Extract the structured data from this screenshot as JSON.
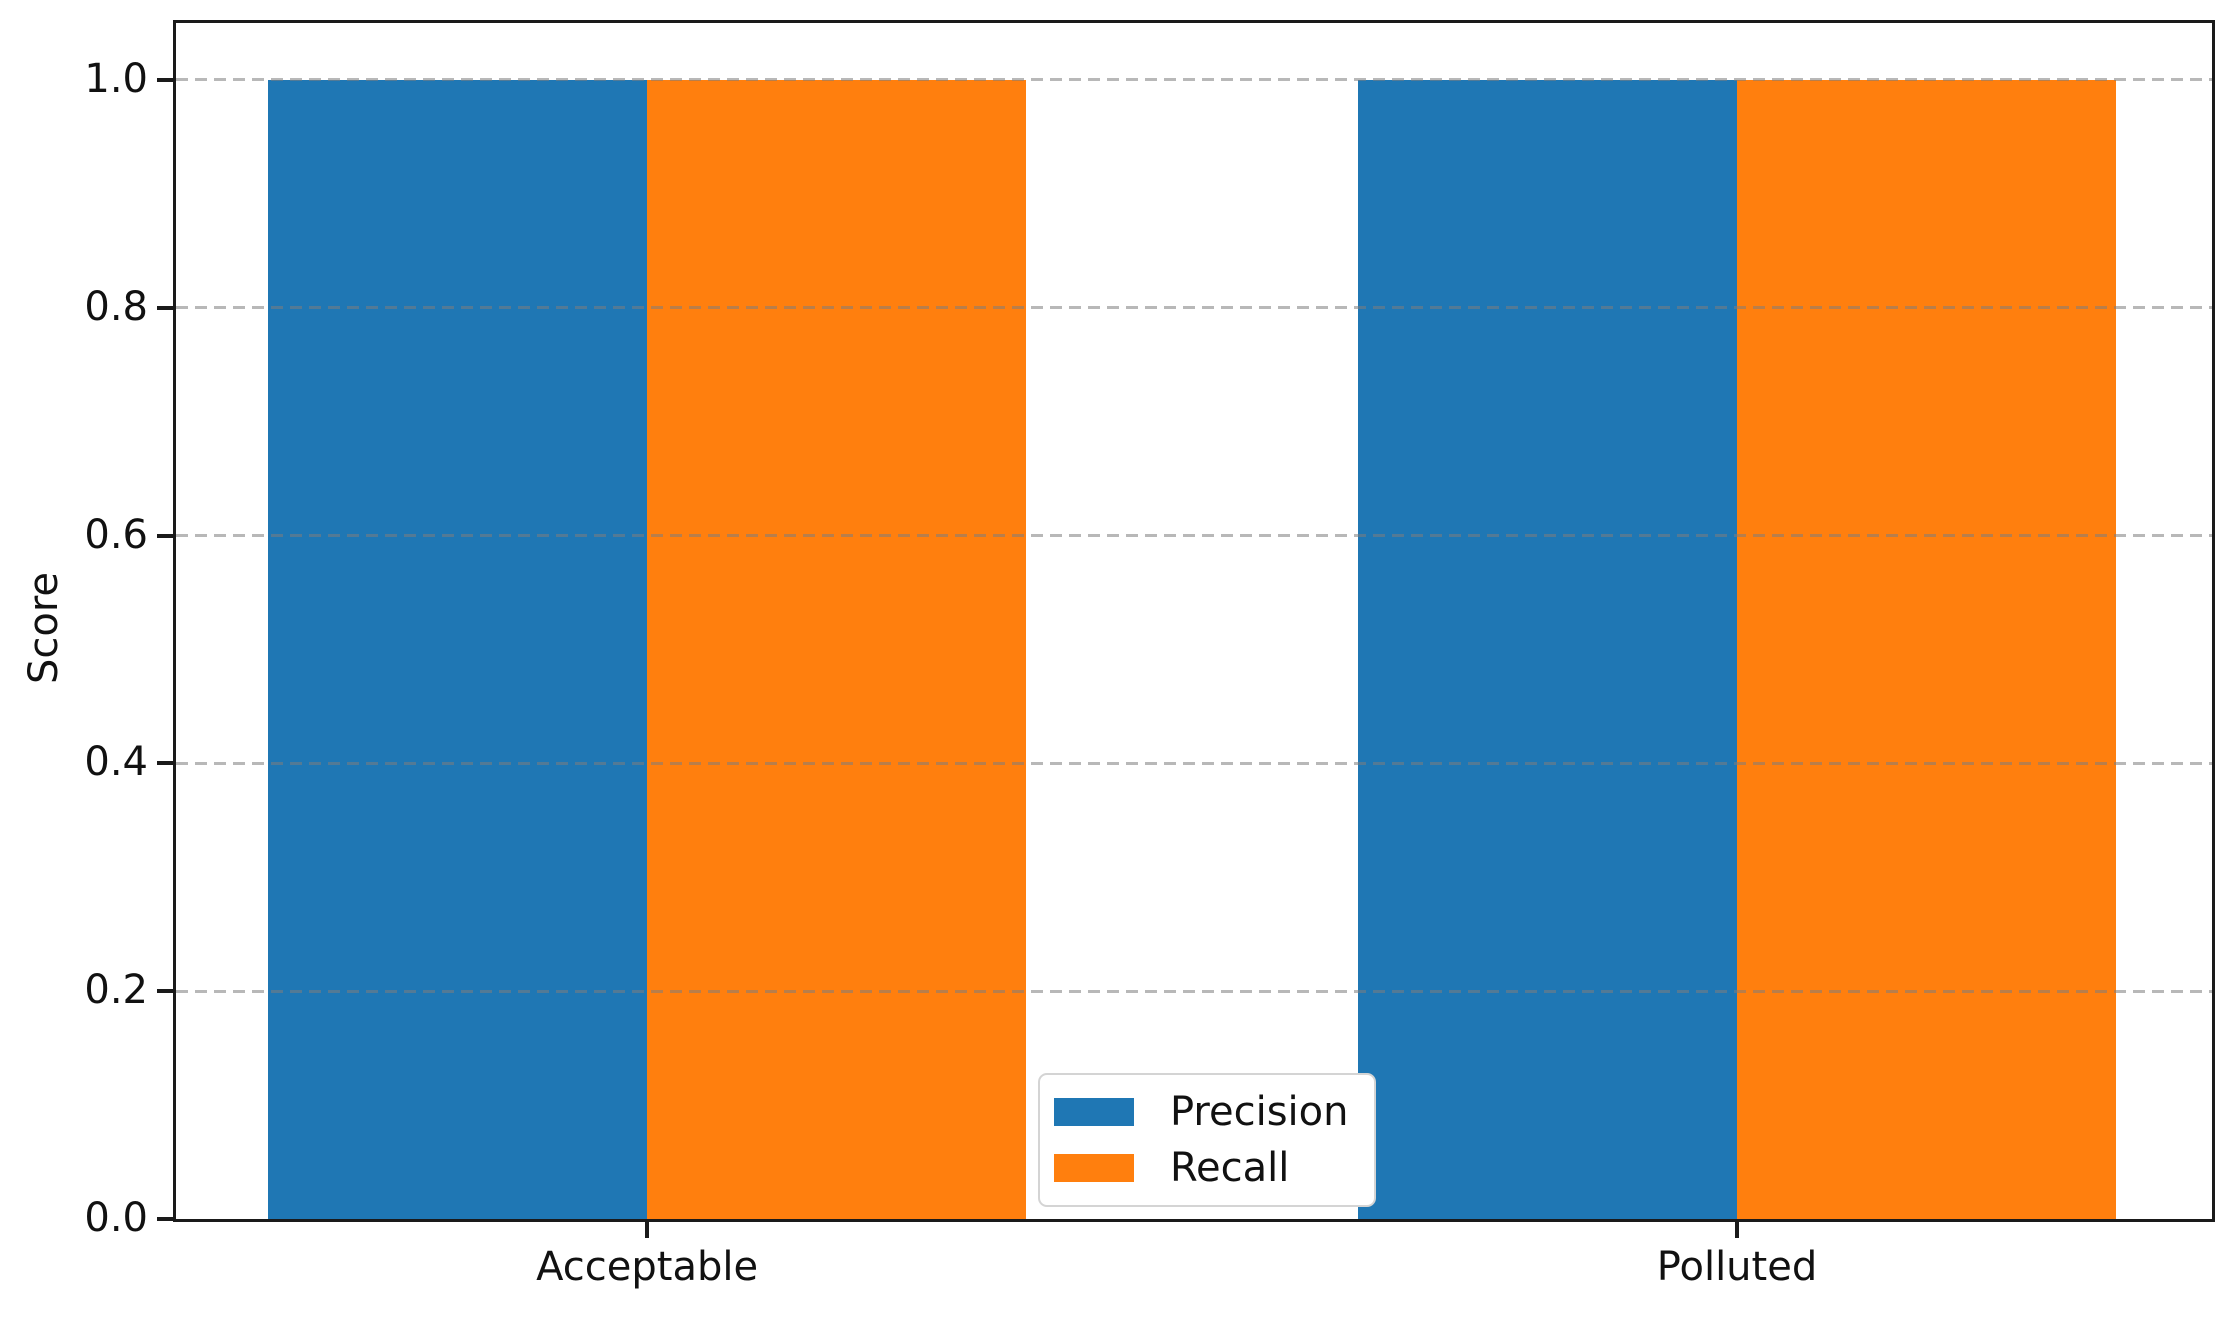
{
  "chart_data": {
    "type": "bar",
    "title": "",
    "categories": [
      "Acceptable",
      "Polluted"
    ],
    "series": [
      {
        "name": "Precision",
        "color": "#1f77b4",
        "values": [
          1.0,
          1.0
        ]
      },
      {
        "name": "Recall",
        "color": "#ff7f0e",
        "values": [
          1.0,
          1.0
        ]
      }
    ],
    "xlabel": "",
    "ylabel": "Score",
    "ylim": [
      0,
      1.05
    ],
    "yticks": [
      0.0,
      0.2,
      0.4,
      0.6,
      0.8,
      1.0
    ],
    "ytick_labels": [
      "0.0",
      "0.2",
      "0.4",
      "0.6",
      "0.8",
      "1.0"
    ],
    "grid": {
      "axis": "y",
      "linestyle": "dashed",
      "color": "#bfbfbf",
      "drawn_over_bars": true
    },
    "legend": {
      "location": "lower center",
      "entries": [
        "Precision",
        "Recall"
      ]
    },
    "bar_width": 0.35
  },
  "styles": {
    "background": "#ffffff",
    "spine_color": "#1a1a1a",
    "tick_label_color": "#111111",
    "legend_border_color": "#d4d4d4"
  }
}
